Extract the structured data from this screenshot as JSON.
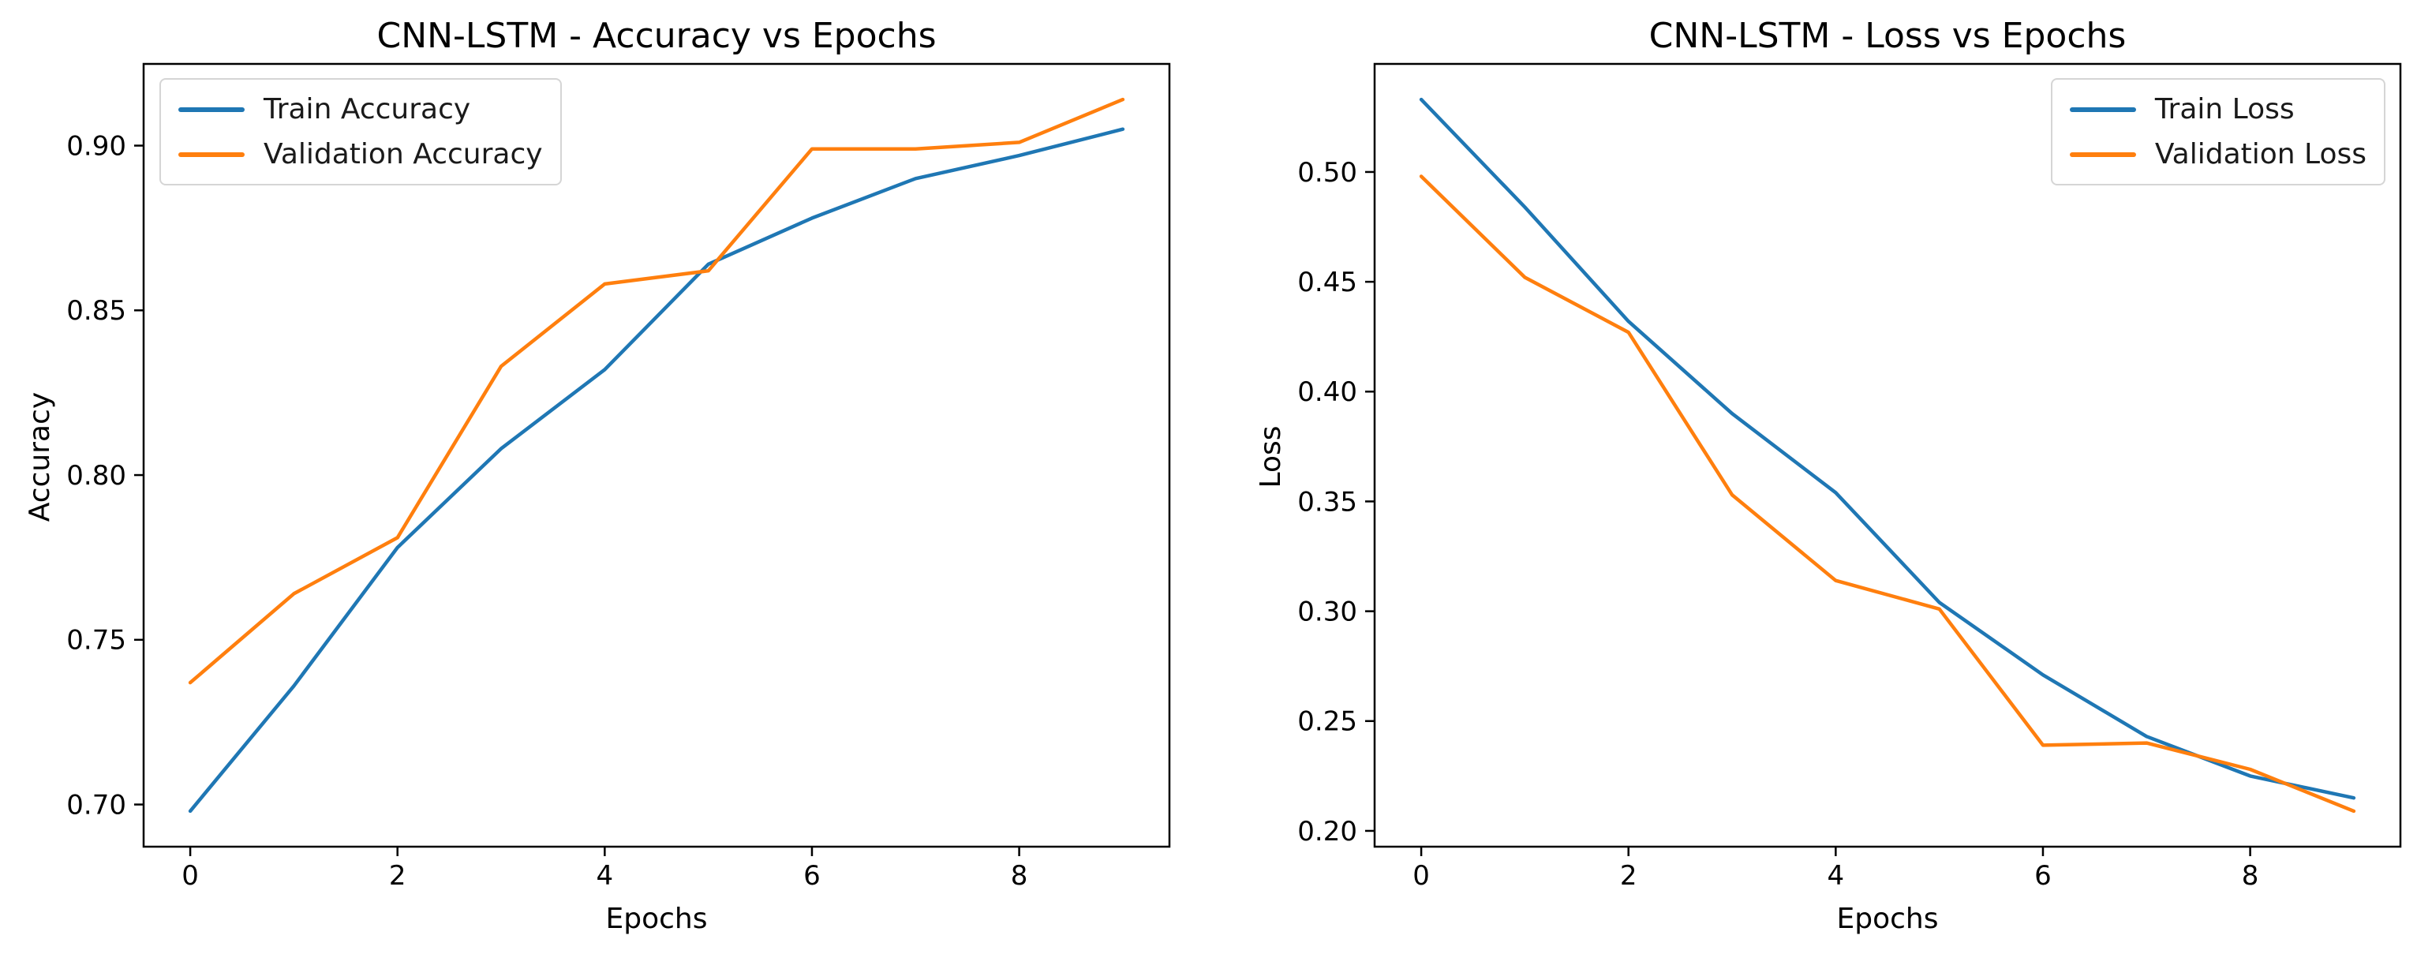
{
  "figure": {
    "background": "#ffffff"
  },
  "colors": {
    "train": "#1f77b4",
    "validation": "#ff7f0e",
    "text": "#000000",
    "spine": "#000000",
    "legend_border": "#d5d5d5"
  },
  "chart_data": [
    {
      "type": "line",
      "title": "CNN-LSTM - Accuracy vs Epochs",
      "xlabel": "Epochs",
      "ylabel": "Accuracy",
      "x": [
        0,
        1,
        2,
        3,
        4,
        5,
        6,
        7,
        8,
        9
      ],
      "series": [
        {
          "name": "Train Accuracy",
          "color": "#1f77b4",
          "values": [
            0.698,
            0.736,
            0.778,
            0.808,
            0.832,
            0.864,
            0.878,
            0.89,
            0.897,
            0.905
          ]
        },
        {
          "name": "Validation Accuracy",
          "color": "#ff7f0e",
          "values": [
            0.737,
            0.764,
            0.781,
            0.833,
            0.858,
            0.862,
            0.899,
            0.899,
            0.901,
            0.914
          ]
        }
      ],
      "xlim": [
        -0.45,
        9.45
      ],
      "ylim": [
        0.6872,
        0.9248
      ],
      "xticks": [
        0,
        2,
        4,
        6,
        8
      ],
      "xtick_labels": [
        "0",
        "2",
        "4",
        "6",
        "8"
      ],
      "yticks": [
        0.7,
        0.75,
        0.8,
        0.85,
        0.9
      ],
      "ytick_labels": [
        "0.70",
        "0.75",
        "0.80",
        "0.85",
        "0.90"
      ],
      "grid": false,
      "legend_position": "upper-left"
    },
    {
      "type": "line",
      "title": "CNN-LSTM - Loss vs Epochs",
      "xlabel": "Epochs",
      "ylabel": "Loss",
      "x": [
        0,
        1,
        2,
        3,
        4,
        5,
        6,
        7,
        8,
        9
      ],
      "series": [
        {
          "name": "Train Loss",
          "color": "#1f77b4",
          "values": [
            0.533,
            0.484,
            0.432,
            0.39,
            0.354,
            0.304,
            0.271,
            0.243,
            0.225,
            0.215
          ]
        },
        {
          "name": "Validation Loss",
          "color": "#ff7f0e",
          "values": [
            0.498,
            0.452,
            0.427,
            0.353,
            0.314,
            0.301,
            0.239,
            0.24,
            0.228,
            0.209
          ]
        }
      ],
      "xlim": [
        -0.45,
        9.45
      ],
      "ylim": [
        0.1928,
        0.5492
      ],
      "xticks": [
        0,
        2,
        4,
        6,
        8
      ],
      "xtick_labels": [
        "0",
        "2",
        "4",
        "6",
        "8"
      ],
      "yticks": [
        0.2,
        0.25,
        0.3,
        0.35,
        0.4,
        0.45,
        0.5
      ],
      "ytick_labels": [
        "0.20",
        "0.25",
        "0.30",
        "0.35",
        "0.40",
        "0.45",
        "0.50"
      ],
      "grid": false,
      "legend_position": "upper-right"
    }
  ]
}
